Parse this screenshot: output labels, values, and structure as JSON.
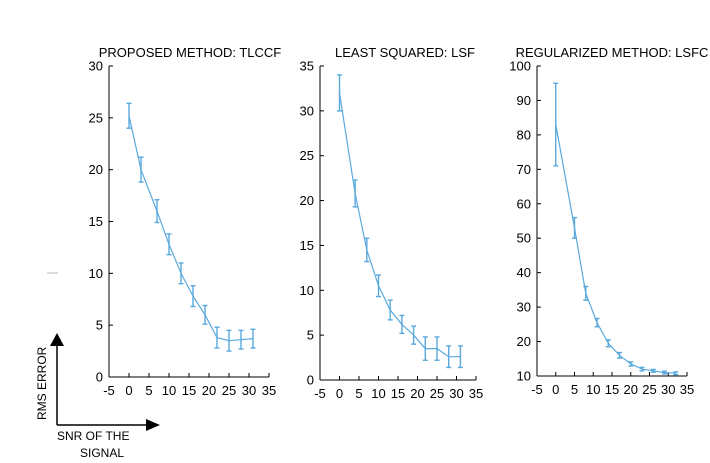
{
  "figure": {
    "y_axis_label": "RMS ERROR",
    "x_axis_label_line1": "SNR OF THE",
    "x_axis_label_line2": "SIGNAL"
  },
  "chart_data": [
    {
      "type": "line",
      "title": "PROPOSED METHOD: TLCCF",
      "xlim": [
        -5,
        35
      ],
      "ylim": [
        0,
        30
      ],
      "xticks": [
        -5,
        0,
        5,
        10,
        15,
        20,
        25,
        30,
        35
      ],
      "yticks": [
        0,
        5,
        10,
        15,
        20,
        25,
        30
      ],
      "x": [
        0,
        3,
        7,
        10,
        13,
        16,
        19,
        22,
        25,
        28,
        31
      ],
      "y": [
        25.2,
        20.0,
        16.0,
        12.8,
        10.0,
        7.8,
        6.0,
        3.8,
        3.5,
        3.6,
        3.7
      ],
      "err": [
        1.2,
        1.2,
        1.1,
        1.0,
        1.0,
        1.0,
        0.9,
        1.0,
        1.0,
        0.9,
        0.9
      ],
      "color": "#5aa9dd"
    },
    {
      "type": "line",
      "title": "LEAST SQUARED: LSF",
      "xlim": [
        -5,
        35
      ],
      "ylim": [
        0,
        35
      ],
      "xticks": [
        -5,
        0,
        5,
        10,
        15,
        20,
        25,
        30,
        35
      ],
      "yticks": [
        0,
        5,
        10,
        15,
        20,
        25,
        30,
        35
      ],
      "x": [
        0,
        4,
        7,
        10,
        13,
        16,
        19,
        22,
        25,
        28,
        31
      ],
      "y": [
        32.0,
        20.8,
        14.5,
        10.5,
        7.8,
        6.2,
        5.0,
        3.5,
        3.5,
        2.6,
        2.6
      ],
      "err": [
        2.0,
        1.5,
        1.3,
        1.2,
        1.1,
        1.0,
        1.0,
        1.3,
        1.3,
        1.2,
        1.2
      ],
      "color": "#5aa9dd"
    },
    {
      "type": "line",
      "title": "REGULARIZED METHOD: LSFC",
      "xlim": [
        -5,
        35
      ],
      "ylim": [
        10,
        100
      ],
      "xticks": [
        -5,
        0,
        5,
        10,
        15,
        20,
        25,
        30,
        35
      ],
      "yticks": [
        10,
        20,
        30,
        40,
        50,
        60,
        70,
        80,
        90,
        100
      ],
      "x": [
        0,
        5,
        8,
        11,
        14,
        17,
        20,
        23,
        26,
        29,
        32
      ],
      "y": [
        83,
        53,
        34,
        25.5,
        19.5,
        16,
        13.5,
        12,
        11.5,
        11,
        10.8
      ],
      "err": [
        12,
        3,
        2,
        1.2,
        1,
        0.8,
        0.6,
        0.5,
        0.4,
        0.4,
        0.4
      ],
      "color": "#5aa9dd"
    }
  ]
}
